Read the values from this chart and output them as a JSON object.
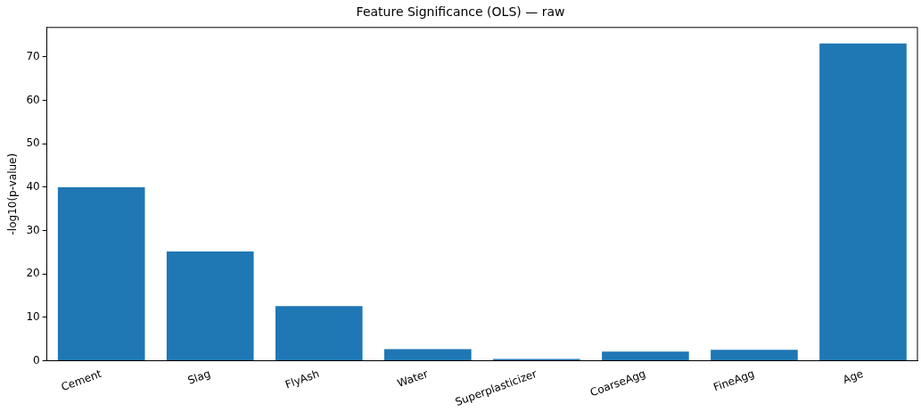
{
  "chart_data": {
    "type": "bar",
    "title": "Feature Significance (OLS) — raw",
    "ylabel": "-log10(p-value)",
    "categories": [
      "Cement",
      "Slag",
      "FlyAsh",
      "Water",
      "Superplasticizer",
      "CoarseAgg",
      "FineAgg",
      "Age"
    ],
    "values": [
      40.0,
      25.2,
      12.6,
      2.7,
      0.4,
      2.1,
      2.5,
      73.1
    ],
    "color": "#1f77b4",
    "ylim": [
      0,
      76.8
    ],
    "yticks": [
      0,
      10,
      20,
      30,
      40,
      50,
      60,
      70
    ],
    "grid": false,
    "legend": false
  }
}
